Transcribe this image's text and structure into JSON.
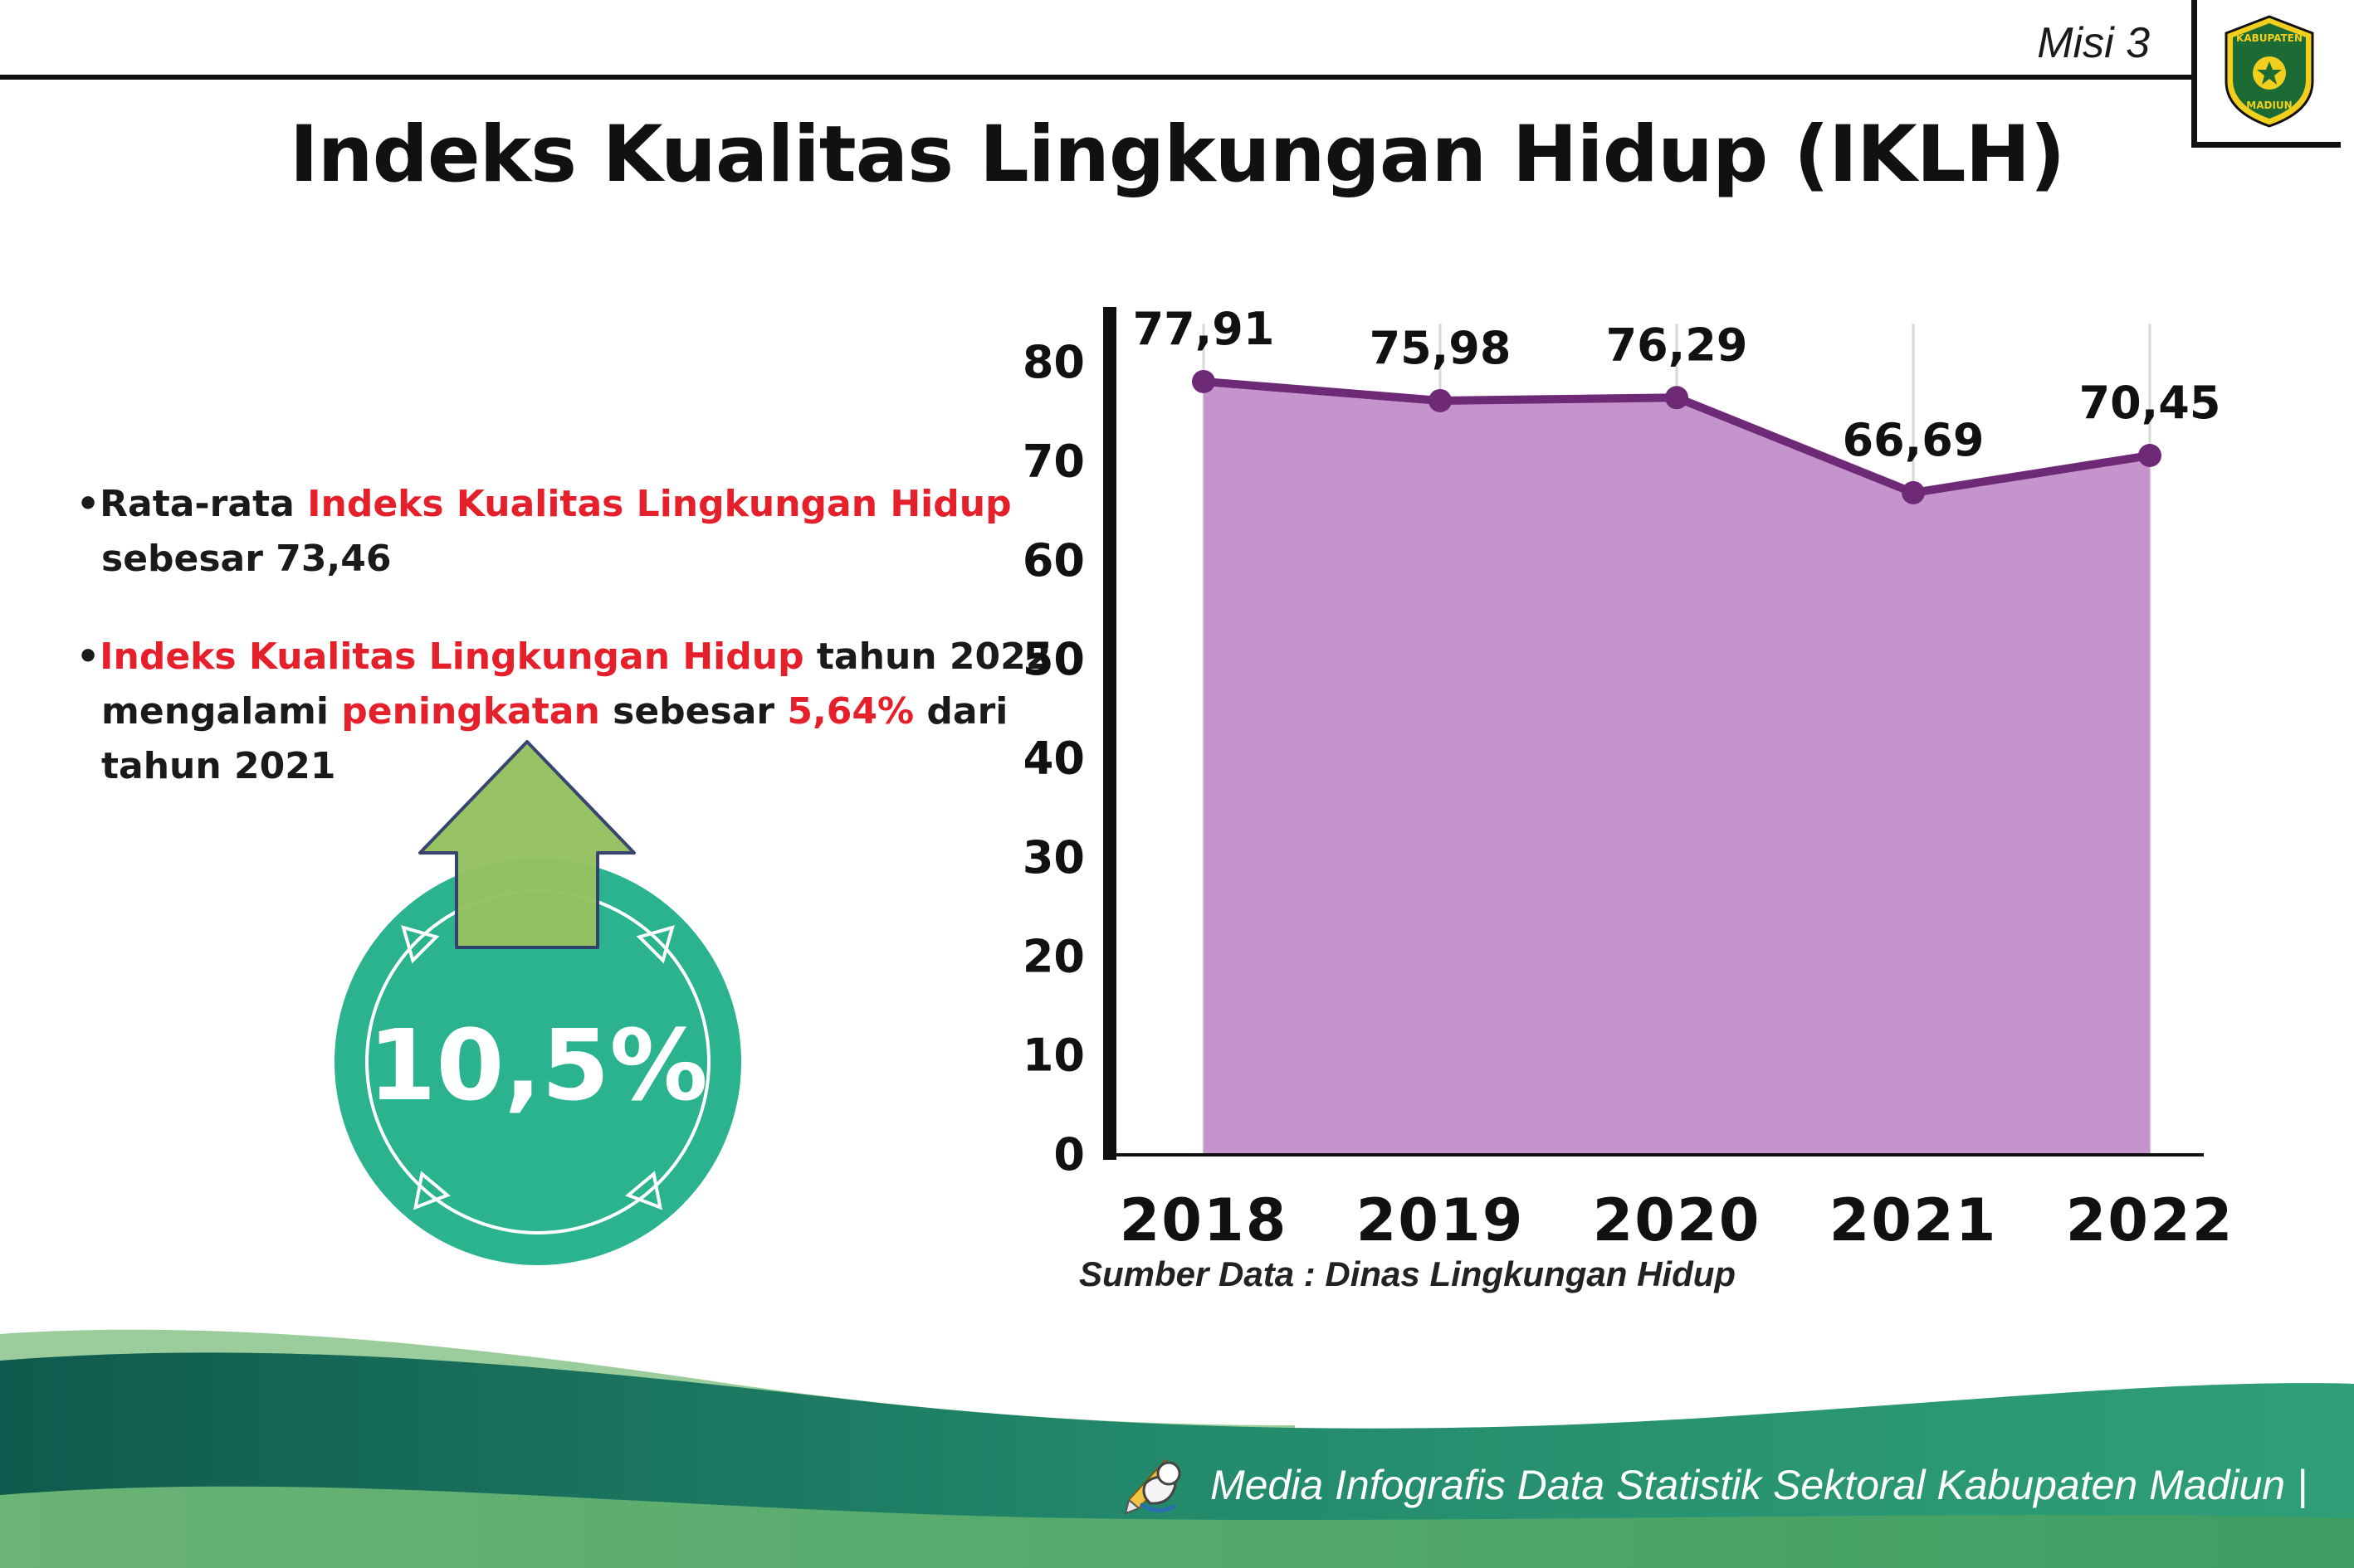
{
  "colors": {
    "accent_red": "#e5202a",
    "badge_teal": "#2bb28e",
    "arrow_green": "#95c25f",
    "chart_line": "#6e2a77",
    "chart_fill": "#c694cc",
    "footer_teal_dark": "#0f5a4e",
    "footer_teal_light": "#2f9f78",
    "footer_green": "#3f9e63"
  },
  "header": {
    "misi_label": "Misi 3",
    "title": "Indeks Kualitas Lingkungan Hidup (IKLH)",
    "logo": {
      "line1": "KABUPATEN",
      "line2": "MADIUN"
    }
  },
  "bullets": {
    "bullet_char": "•",
    "b1": {
      "black1": "Rata-rata ",
      "red1": "Indeks Kualitas Lingkungan Hidup",
      "black2": " sebesar 73,46"
    },
    "b2": {
      "red1": "Indeks Kualitas Lingkungan Hidup",
      "black1": " tahun 2022 mengalami ",
      "red2": "peningkatan",
      "black2": " sebesar ",
      "red3": "5,64%",
      "black3": " dari tahun 2021"
    }
  },
  "badge": {
    "value": "10,5%"
  },
  "chart_data": {
    "type": "area",
    "categories": [
      "2018",
      "2019",
      "2020",
      "2021",
      "2022"
    ],
    "values": [
      77.91,
      75.98,
      76.29,
      66.69,
      70.45
    ],
    "point_labels": [
      "77,91",
      "75,98",
      "76,29",
      "66,69",
      "70,45"
    ],
    "title": "",
    "xlabel": "",
    "ylabel": "",
    "ylim": [
      0,
      80
    ],
    "yticks": [
      0,
      10,
      20,
      30,
      40,
      50,
      60,
      70,
      80
    ],
    "grid": "vertical-faint",
    "legend_position": "none",
    "line_color": "#6e2a77",
    "fill_color": "#c694cc",
    "source_note": "Sumber Data : Dinas Lingkungan Hidup"
  },
  "footer": {
    "text": "Media Infografis Data Statistik Sektoral Kabupaten Madiun |"
  }
}
